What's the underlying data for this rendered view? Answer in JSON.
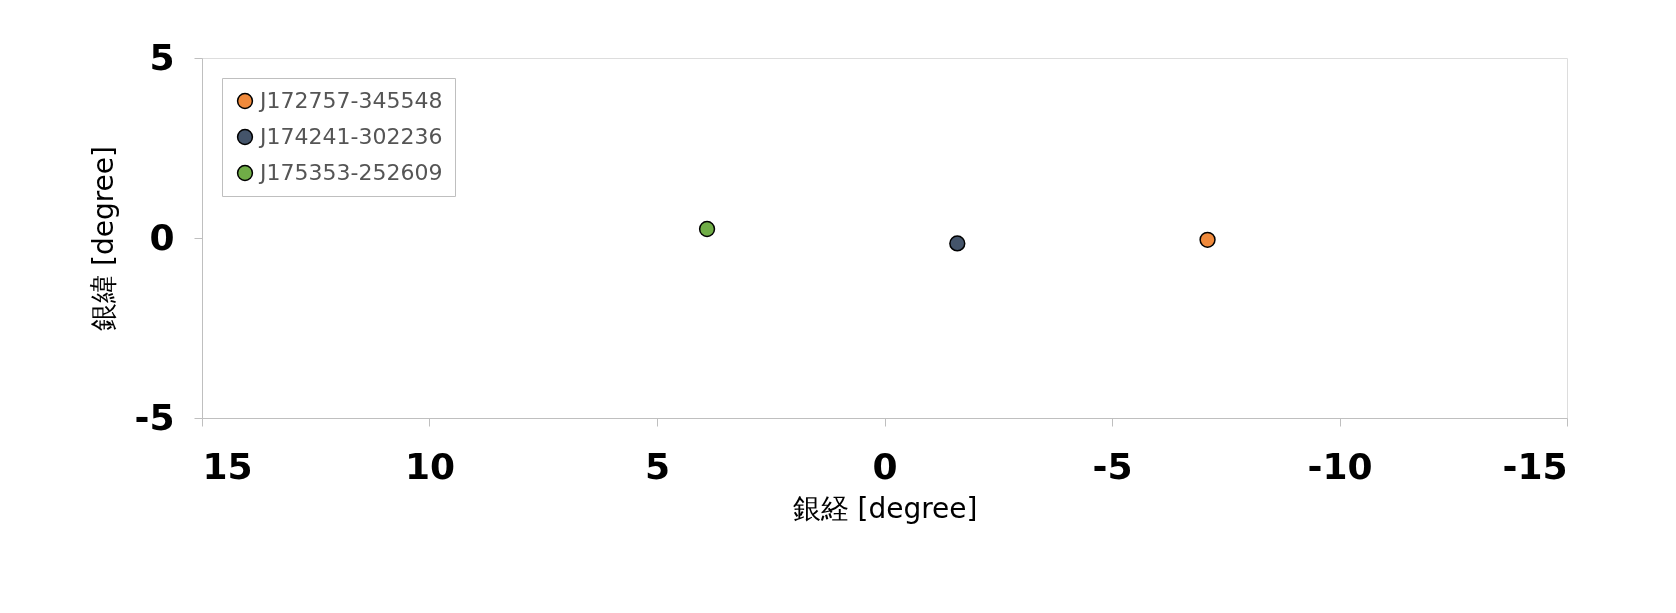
{
  "chart_data": {
    "type": "scatter",
    "xlabel": "銀経 [degree]",
    "ylabel": "銀緯 [degree]",
    "series": [
      {
        "name": "J172757-345548",
        "color": "#f08a3c",
        "x": [
          -7.1
        ],
        "values": [
          -0.05
        ]
      },
      {
        "name": "J174241-302236",
        "color": "#44546a",
        "x": [
          -1.6
        ],
        "values": [
          -0.15
        ]
      },
      {
        "name": "J175353-252609",
        "color": "#70ad47",
        "x": [
          3.9
        ],
        "values": [
          0.25
        ]
      }
    ],
    "xlim": [
      15,
      -15
    ],
    "xticks": [
      15,
      10,
      5,
      0,
      -5,
      -10,
      -15
    ],
    "ylim": [
      -5,
      5
    ],
    "yticks": [
      -5,
      0,
      5
    ],
    "grid": false,
    "legend": "top left",
    "marker": "circle"
  }
}
